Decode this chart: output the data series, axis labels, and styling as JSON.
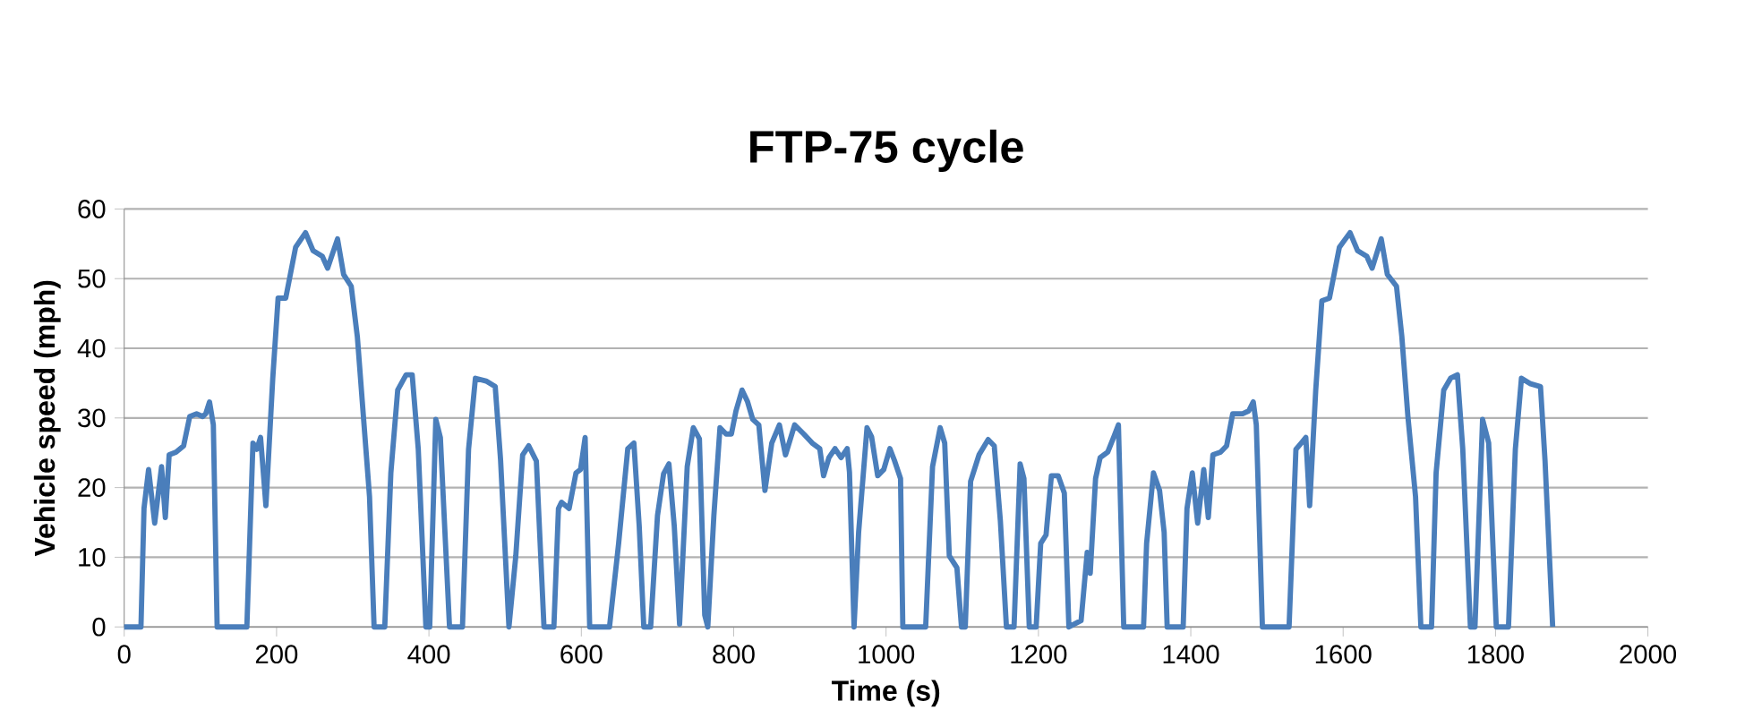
{
  "chart_data": {
    "type": "line",
    "title": "FTP-75 cycle",
    "xlabel": "Time (s)",
    "ylabel": "Vehicle speed (mph)",
    "xlim": [
      0,
      2000
    ],
    "xticks": [
      0,
      200,
      400,
      600,
      800,
      1000,
      1200,
      1400,
      1600,
      1800,
      2000
    ],
    "ylim": [
      0,
      60
    ],
    "yticks": [
      0,
      10,
      20,
      30,
      40,
      50,
      60
    ],
    "grid": "y",
    "legend": false,
    "marker": "none",
    "line_style": "solid",
    "series": [
      {
        "color": "#4a7ebb",
        "x": [
          0,
          22,
          26,
          32,
          40,
          49,
          54,
          59,
          68,
          78,
          86,
          95,
          103,
          107,
          112,
          117,
          122,
          161,
          169,
          174,
          179,
          186,
          195,
          202,
          212,
          225,
          238,
          248,
          260,
          267,
          280,
          288,
          298,
          306,
          314,
          322,
          328,
          342,
          350,
          359,
          370,
          378,
          386,
          396,
          401,
          409,
          415,
          427,
          444,
          452,
          461,
          475,
          487,
          494,
          505,
          514,
          523,
          531,
          541,
          551,
          564,
          570,
          574,
          584,
          593,
          599,
          605,
          611,
          637,
          649,
          661,
          669,
          676,
          682,
          691,
          700,
          708,
          715,
          722,
          729,
          739,
          747,
          755,
          762,
          766,
          774,
          782,
          790,
          797,
          803,
          811,
          818,
          825,
          833,
          841,
          850,
          860,
          868,
          880,
          892,
          903,
          913,
          918,
          925,
          933,
          941,
          949,
          952,
          958,
          964,
          975,
          981,
          989,
          997,
          1005,
          1011,
          1019,
          1022,
          1052,
          1061,
          1071,
          1077,
          1083,
          1093,
          1099,
          1104,
          1111,
          1122,
          1134,
          1142,
          1150,
          1158,
          1168,
          1176,
          1181,
          1188,
          1197,
          1203,
          1210,
          1217,
          1226,
          1234,
          1240,
          1256,
          1264,
          1268,
          1275,
          1281,
          1291,
          1299,
          1305,
          1312,
          1338,
          1342,
          1351,
          1359,
          1365,
          1369,
          1390,
          1395,
          1402,
          1409,
          1417,
          1423,
          1429,
          1439,
          1447,
          1455,
          1468,
          1476,
          1482,
          1486,
          1494,
          1529,
          1538,
          1545,
          1551,
          1556,
          1564,
          1572,
          1582,
          1595,
          1609,
          1619,
          1631,
          1638,
          1650,
          1658,
          1670,
          1677,
          1685,
          1695,
          1702,
          1716,
          1722,
          1732,
          1741,
          1750,
          1757,
          1767,
          1773,
          1783,
          1791,
          1801,
          1817,
          1826,
          1834,
          1846,
          1859,
          1865,
          1875
        ],
        "values": [
          0,
          0,
          17,
          22.6,
          14.9,
          23,
          15.7,
          24.7,
          25.1,
          26,
          30.2,
          30.6,
          30.2,
          30.6,
          32.3,
          29,
          0,
          0,
          26.4,
          25.5,
          27.2,
          17.4,
          35.7,
          47.2,
          47.2,
          54.5,
          56.6,
          54,
          53.2,
          51.5,
          55.7,
          50.6,
          48.9,
          41.7,
          30.2,
          18.7,
          0,
          0,
          22.1,
          34,
          36.2,
          36.2,
          25.5,
          0,
          0,
          29.8,
          27.2,
          0,
          0,
          25.5,
          35.7,
          35.3,
          34.5,
          24,
          0,
          10.2,
          24.7,
          26,
          23.8,
          0,
          0,
          17,
          17.9,
          17,
          22.1,
          22.6,
          27.2,
          0,
          0,
          12,
          25.6,
          26.4,
          14.5,
          0,
          0,
          16,
          22,
          23.4,
          14.5,
          0.4,
          23,
          28.6,
          27,
          1.7,
          0,
          16,
          28.6,
          27.7,
          27.7,
          31,
          34,
          32.4,
          29.8,
          29,
          19.6,
          26.4,
          29,
          24.7,
          29,
          27.7,
          26.4,
          25.6,
          21.7,
          24.3,
          25.6,
          24.3,
          25.6,
          22.2,
          0,
          13.6,
          28.6,
          27.3,
          21.7,
          22.6,
          25.6,
          23.9,
          21.3,
          0,
          0,
          23,
          28.6,
          26.4,
          10.2,
          8.5,
          0,
          0,
          20.9,
          24.7,
          26.9,
          26,
          15.3,
          0,
          0,
          23.4,
          21.3,
          0,
          0,
          12,
          13.2,
          21.7,
          21.7,
          19.2,
          0,
          0.9,
          10.7,
          7.7,
          21.3,
          24.3,
          25.1,
          27.3,
          29,
          0,
          0,
          12,
          22.1,
          19.6,
          13.6,
          0,
          0,
          17,
          22.1,
          14.9,
          22.6,
          15.7,
          24.7,
          25.1,
          26,
          30.6,
          30.6,
          31,
          32.3,
          29,
          0,
          0,
          25.5,
          26.4,
          27.2,
          17.4,
          34,
          46.8,
          47.2,
          54.5,
          56.6,
          54,
          53.2,
          51.5,
          55.7,
          50.6,
          48.9,
          41.7,
          30.2,
          18.7,
          0,
          0,
          22.1,
          34,
          35.7,
          36.2,
          25.5,
          0,
          0,
          29.8,
          26.4,
          0,
          0,
          25.5,
          35.7,
          34.9,
          34.5,
          23.8,
          0
        ]
      }
    ]
  }
}
